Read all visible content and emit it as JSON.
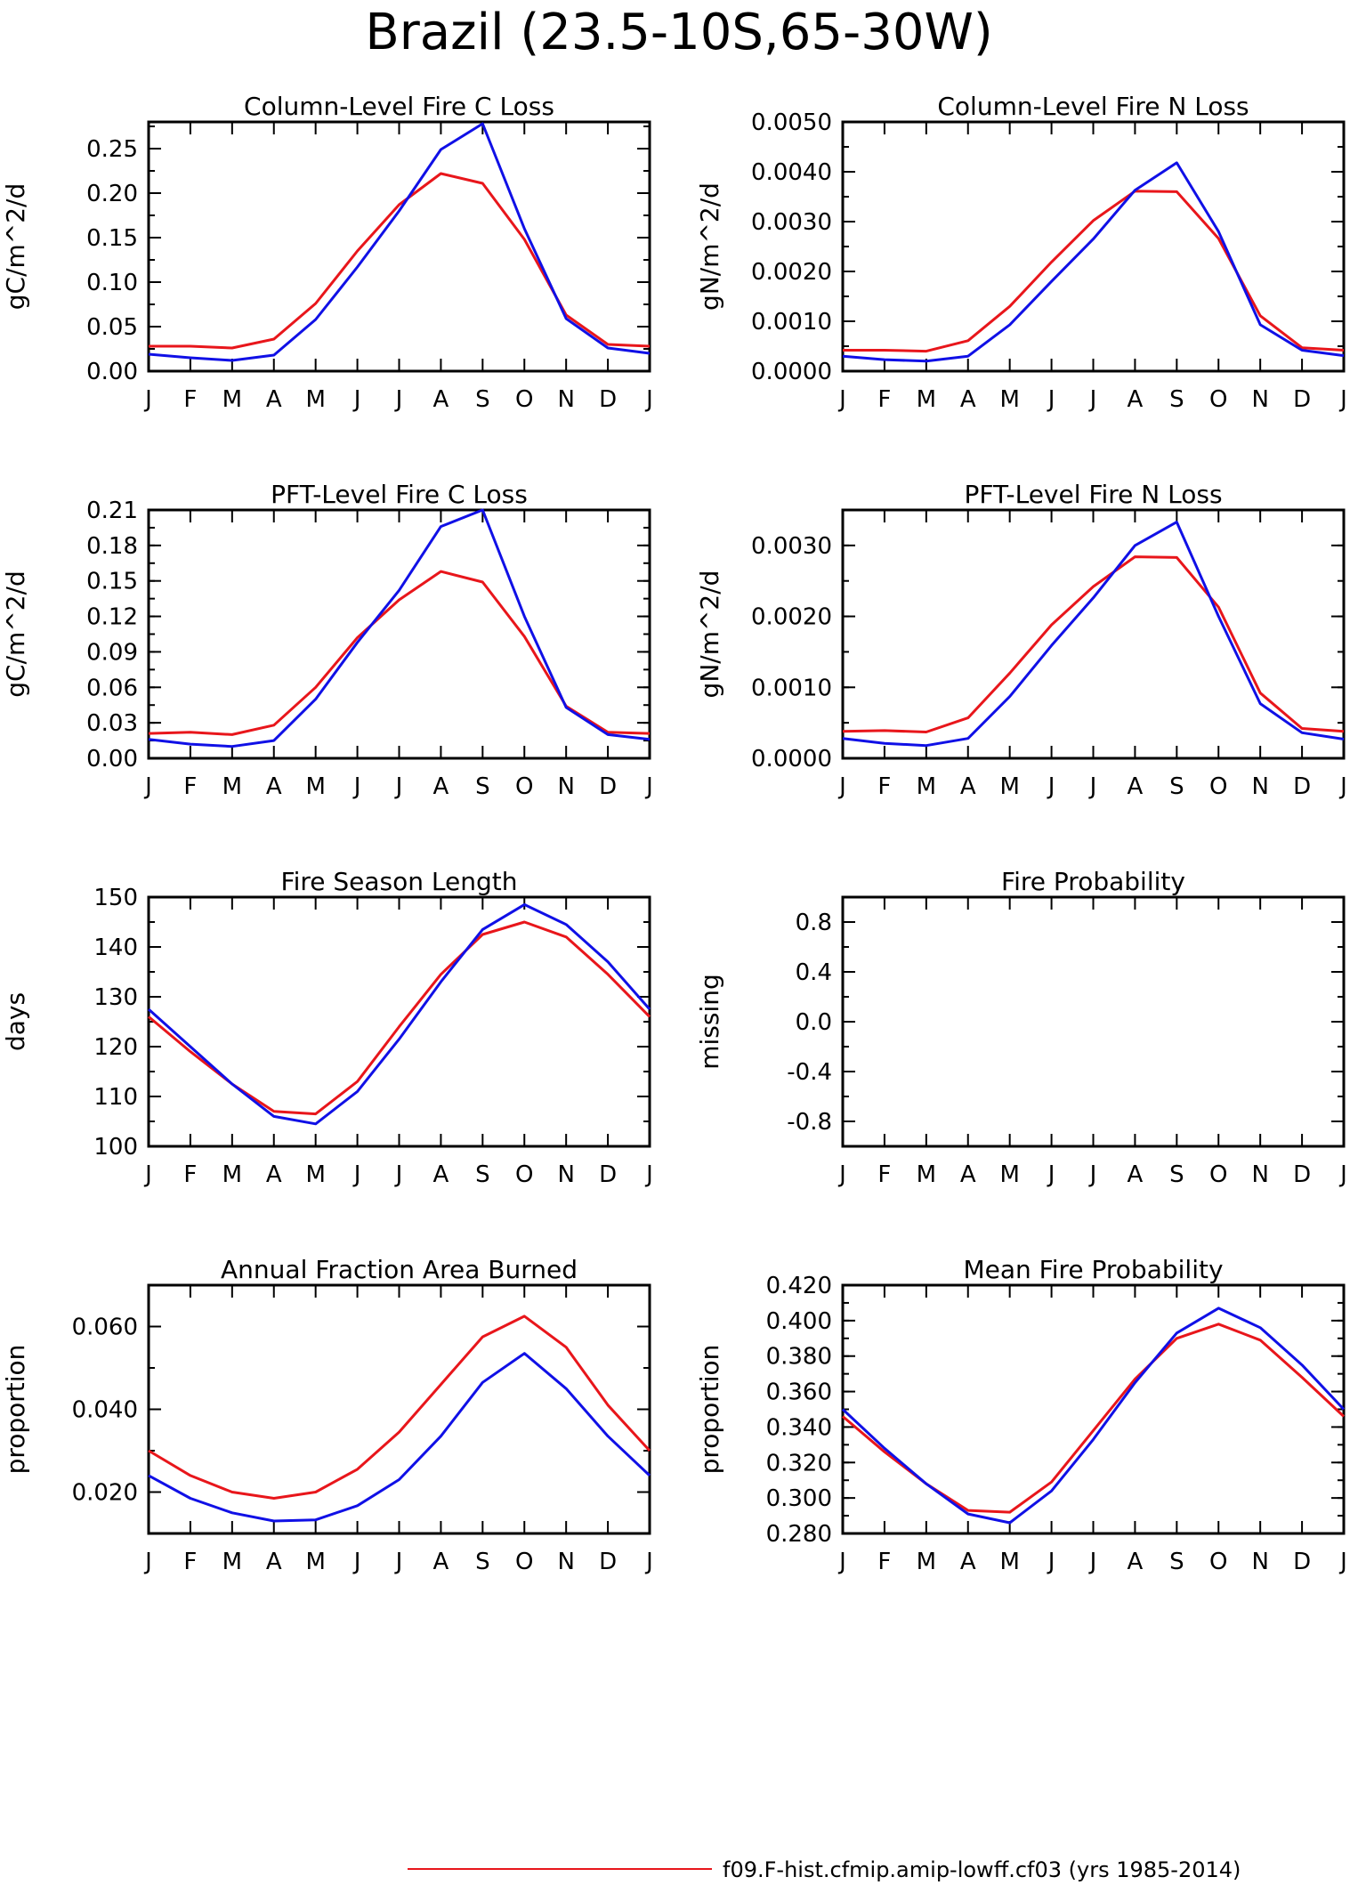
{
  "figure": {
    "title": "Brazil (23.5-10S,65-30W)",
    "legend": [
      {
        "label": "f09.F-hist.cfmip.amip-lowff.cf03 (yrs 1985-2014)",
        "color": "#e8161b"
      }
    ]
  },
  "colors": {
    "series_red": "#e8161b",
    "series_blue": "#1010e6",
    "axis": "#000000"
  },
  "chart_data": [
    {
      "type": "line",
      "title": "Column-Level Fire C Loss",
      "ylabel": "gC/m^2/d",
      "x": [
        "J",
        "F",
        "M",
        "A",
        "M",
        "J",
        "J",
        "A",
        "S",
        "O",
        "N",
        "D",
        "J"
      ],
      "ylim": [
        0,
        0.28
      ],
      "yticks": [
        "0.00",
        "0.05",
        "0.10",
        "0.15",
        "0.20",
        "0.25"
      ],
      "series": [
        {
          "color": "red",
          "values": [
            0.028,
            0.028,
            0.026,
            0.036,
            0.076,
            0.135,
            0.187,
            0.222,
            0.211,
            0.148,
            0.063,
            0.03,
            0.028
          ]
        },
        {
          "color": "blue",
          "values": [
            0.019,
            0.015,
            0.012,
            0.018,
            0.058,
            0.117,
            0.18,
            0.249,
            0.278,
            0.16,
            0.059,
            0.026,
            0.02
          ]
        }
      ]
    },
    {
      "type": "line",
      "title": "Column-Level Fire N Loss",
      "ylabel": "gN/m^2/d",
      "x": [
        "J",
        "F",
        "M",
        "A",
        "M",
        "J",
        "J",
        "A",
        "S",
        "O",
        "N",
        "D",
        "J"
      ],
      "ylim": [
        0,
        0.005
      ],
      "yticks": [
        "0.0000",
        "0.0010",
        "0.0020",
        "0.0030",
        "0.0040",
        "0.0050"
      ],
      "series": [
        {
          "color": "red",
          "values": [
            0.00042,
            0.00042,
            0.0004,
            0.00061,
            0.0013,
            0.00219,
            0.00302,
            0.00361,
            0.0036,
            0.00266,
            0.00111,
            0.00047,
            0.00042
          ]
        },
        {
          "color": "blue",
          "values": [
            0.0003,
            0.00023,
            0.0002,
            0.0003,
            0.00093,
            0.0018,
            0.00265,
            0.00363,
            0.00418,
            0.0028,
            0.00093,
            0.00042,
            0.00031
          ]
        }
      ]
    },
    {
      "type": "line",
      "title": "PFT-Level Fire C Loss",
      "ylabel": "gC/m^2/d",
      "x": [
        "J",
        "F",
        "M",
        "A",
        "M",
        "J",
        "J",
        "A",
        "S",
        "O",
        "N",
        "D",
        "J"
      ],
      "ylim": [
        0,
        0.21
      ],
      "yticks": [
        "0.00",
        "0.03",
        "0.06",
        "0.09",
        "0.12",
        "0.15",
        "0.18",
        "0.21"
      ],
      "series": [
        {
          "color": "red",
          "values": [
            0.021,
            0.022,
            0.02,
            0.028,
            0.06,
            0.102,
            0.134,
            0.158,
            0.149,
            0.103,
            0.044,
            0.022,
            0.021
          ]
        },
        {
          "color": "blue",
          "values": [
            0.016,
            0.012,
            0.01,
            0.015,
            0.05,
            0.098,
            0.142,
            0.196,
            0.21,
            0.12,
            0.043,
            0.02,
            0.016
          ]
        }
      ]
    },
    {
      "type": "line",
      "title": "PFT-Level Fire N Loss",
      "ylabel": "gN/m^2/d",
      "x": [
        "J",
        "F",
        "M",
        "A",
        "M",
        "J",
        "J",
        "A",
        "S",
        "O",
        "N",
        "D",
        "J"
      ],
      "ylim": [
        0,
        0.0035
      ],
      "yticks": [
        "0.0000",
        "0.0010",
        "0.0020",
        "0.0030"
      ],
      "series": [
        {
          "color": "red",
          "values": [
            0.00038,
            0.00039,
            0.00037,
            0.00057,
            0.0012,
            0.00188,
            0.00242,
            0.00284,
            0.00283,
            0.00213,
            0.00092,
            0.00042,
            0.00038
          ]
        },
        {
          "color": "blue",
          "values": [
            0.00028,
            0.00021,
            0.00018,
            0.00028,
            0.00087,
            0.00159,
            0.00226,
            0.003,
            0.00333,
            0.002,
            0.00077,
            0.00036,
            0.00027
          ]
        }
      ]
    },
    {
      "type": "line",
      "title": "Fire Season Length",
      "ylabel": "days",
      "x": [
        "J",
        "F",
        "M",
        "A",
        "M",
        "J",
        "J",
        "A",
        "S",
        "O",
        "N",
        "D",
        "J"
      ],
      "ylim": [
        100,
        150
      ],
      "yticks": [
        "100",
        "110",
        "120",
        "130",
        "140",
        "150"
      ],
      "series": [
        {
          "color": "red",
          "values": [
            126,
            119,
            112.5,
            107,
            106.5,
            113,
            124,
            134.5,
            142.5,
            145,
            142,
            134.5,
            126
          ]
        },
        {
          "color": "blue",
          "values": [
            127.5,
            120,
            112.5,
            106,
            104.5,
            111,
            121.5,
            133,
            143.5,
            148.5,
            144.5,
            137,
            127.5
          ]
        }
      ]
    },
    {
      "type": "line",
      "title": "Fire Probability",
      "ylabel": "missing",
      "x": [
        "J",
        "F",
        "M",
        "A",
        "M",
        "J",
        "J",
        "A",
        "S",
        "O",
        "N",
        "D",
        "J"
      ],
      "ylim": [
        -1,
        1
      ],
      "yticks": [
        "-0.8",
        "-0.4",
        "0.0",
        "0.4",
        "0.8"
      ],
      "series": []
    },
    {
      "type": "line",
      "title": "Annual Fraction Area Burned",
      "ylabel": "proportion",
      "x": [
        "J",
        "F",
        "M",
        "A",
        "M",
        "J",
        "J",
        "A",
        "S",
        "O",
        "N",
        "D",
        "J"
      ],
      "ylim": [
        0.01,
        0.07
      ],
      "yticks": [
        "0.020",
        "0.040",
        "0.060"
      ],
      "series": [
        {
          "color": "red",
          "values": [
            0.03,
            0.024,
            0.02,
            0.0185,
            0.02,
            0.0255,
            0.0345,
            0.046,
            0.0575,
            0.0625,
            0.055,
            0.041,
            0.03
          ]
        },
        {
          "color": "blue",
          "values": [
            0.024,
            0.0185,
            0.015,
            0.013,
            0.0133,
            0.0167,
            0.023,
            0.0335,
            0.0465,
            0.0535,
            0.045,
            0.0335,
            0.024
          ]
        }
      ]
    },
    {
      "type": "line",
      "title": "Mean Fire Probability",
      "ylabel": "proportion",
      "x": [
        "J",
        "F",
        "M",
        "A",
        "M",
        "J",
        "J",
        "A",
        "S",
        "O",
        "N",
        "D",
        "J"
      ],
      "ylim": [
        0.28,
        0.42
      ],
      "yticks": [
        "0.280",
        "0.300",
        "0.320",
        "0.340",
        "0.360",
        "0.380",
        "0.400",
        "0.420"
      ],
      "series": [
        {
          "color": "red",
          "values": [
            0.346,
            0.326,
            0.308,
            0.293,
            0.292,
            0.309,
            0.338,
            0.367,
            0.39,
            0.398,
            0.389,
            0.368,
            0.346
          ]
        },
        {
          "color": "blue",
          "values": [
            0.35,
            0.328,
            0.308,
            0.291,
            0.286,
            0.304,
            0.333,
            0.365,
            0.393,
            0.407,
            0.396,
            0.375,
            0.35
          ]
        }
      ]
    }
  ]
}
